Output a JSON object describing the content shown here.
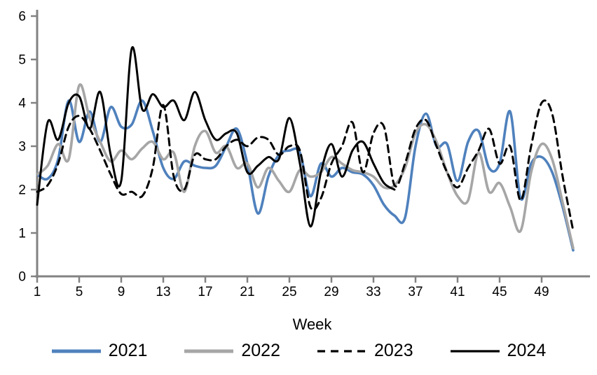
{
  "chart_data": {
    "type": "line",
    "title": "",
    "xlabel": "Week",
    "ylabel": "",
    "xlim": [
      1,
      52
    ],
    "ylim": [
      0,
      6
    ],
    "grid": false,
    "legend_position": "bottom",
    "axis_color": "#828282",
    "x_ticks": [
      1,
      5,
      9,
      13,
      17,
      21,
      25,
      29,
      33,
      37,
      41,
      45,
      49
    ],
    "y_ticks": [
      0,
      1,
      2,
      3,
      4,
      5,
      6
    ],
    "x": [
      1,
      2,
      3,
      4,
      5,
      6,
      7,
      8,
      9,
      10,
      11,
      12,
      13,
      14,
      15,
      16,
      17,
      18,
      19,
      20,
      21,
      22,
      23,
      24,
      25,
      26,
      27,
      28,
      29,
      30,
      31,
      32,
      33,
      34,
      35,
      36,
      37,
      38,
      39,
      40,
      41,
      42,
      43,
      44,
      45,
      46,
      47,
      48,
      49,
      50,
      51,
      52
    ],
    "series": [
      {
        "name": "2021",
        "color": "#4f81bd",
        "style": "solid",
        "line_width": 3.6,
        "values": [
          2.35,
          2.25,
          2.7,
          4.05,
          3.1,
          3.8,
          3.1,
          3.9,
          3.45,
          3.5,
          4.05,
          3.35,
          2.5,
          2.25,
          2.65,
          2.55,
          2.5,
          2.55,
          3.0,
          3.4,
          2.6,
          1.45,
          2.3,
          2.8,
          2.9,
          2.85,
          1.85,
          2.6,
          2.3,
          2.5,
          2.4,
          2.35,
          2.1,
          1.65,
          1.4,
          1.35,
          3.0,
          3.75,
          3.0,
          3.05,
          2.2,
          3.1,
          3.35,
          2.5,
          2.6,
          3.8,
          1.8,
          2.6,
          2.75,
          2.4,
          1.6,
          0.6
        ]
      },
      {
        "name": "2022",
        "color": "#a6a6a6",
        "style": "solid",
        "line_width": 3.6,
        "values": [
          2.35,
          2.55,
          3.05,
          2.7,
          4.4,
          3.65,
          3.1,
          2.65,
          2.9,
          2.7,
          2.95,
          3.1,
          2.7,
          2.85,
          1.95,
          3.0,
          3.35,
          2.85,
          3.0,
          2.5,
          2.6,
          2.05,
          2.5,
          2.2,
          1.95,
          2.45,
          2.3,
          2.4,
          2.75,
          2.6,
          2.45,
          2.4,
          2.3,
          2.05,
          2.1,
          2.5,
          3.3,
          3.5,
          3.1,
          2.4,
          1.85,
          1.75,
          2.85,
          1.95,
          2.15,
          1.6,
          1.05,
          2.4,
          3.05,
          2.7,
          1.7,
          0.65
        ]
      },
      {
        "name": "2023",
        "color": "#000000",
        "style": "dashed",
        "line_width": 3.0,
        "values": [
          1.95,
          2.1,
          2.6,
          3.45,
          3.7,
          3.4,
          2.9,
          2.35,
          1.9,
          1.95,
          1.85,
          2.5,
          3.95,
          2.3,
          2.0,
          2.8,
          2.7,
          2.7,
          3.0,
          3.15,
          3.0,
          3.2,
          3.15,
          2.8,
          3.0,
          2.9,
          1.6,
          1.8,
          2.6,
          3.0,
          3.55,
          2.4,
          3.3,
          3.45,
          2.1,
          2.6,
          3.4,
          3.6,
          3.0,
          2.4,
          2.05,
          2.5,
          2.9,
          3.4,
          2.6,
          3.0,
          1.75,
          3.0,
          4.0,
          3.75,
          2.3,
          1.05
        ]
      },
      {
        "name": "2024",
        "color": "#000000",
        "style": "solid",
        "line_width": 3.0,
        "values": [
          1.65,
          3.55,
          3.15,
          4.0,
          4.15,
          3.4,
          4.25,
          2.8,
          2.2,
          5.25,
          3.85,
          4.2,
          3.9,
          4.05,
          3.6,
          4.25,
          3.6,
          3.15,
          3.3,
          3.3,
          2.4,
          2.55,
          2.75,
          2.7,
          3.65,
          2.6,
          1.15,
          2.4,
          3.05,
          2.3,
          2.9,
          3.1,
          2.6,
          2.15,
          2.0
        ]
      }
    ]
  }
}
